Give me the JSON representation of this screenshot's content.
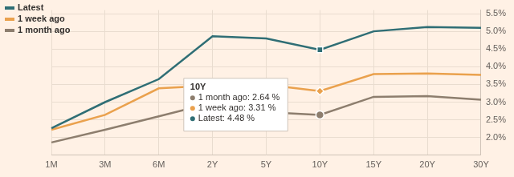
{
  "chart_data": {
    "type": "line",
    "categories": [
      "1M",
      "3M",
      "6M",
      "2Y",
      "5Y",
      "10Y",
      "15Y",
      "20Y",
      "30Y"
    ],
    "series": [
      {
        "name": "Latest",
        "color": "#2f6e75",
        "values": [
          2.26,
          3.0,
          3.65,
          4.86,
          4.8,
          4.48,
          5.0,
          5.12,
          5.1
        ]
      },
      {
        "name": "1 week ago",
        "color": "#eaa14d",
        "values": [
          2.22,
          2.64,
          3.39,
          3.47,
          3.49,
          3.31,
          3.79,
          3.81,
          3.77
        ]
      },
      {
        "name": "1 month ago",
        "color": "#8d7e6e",
        "values": [
          1.86,
          2.22,
          2.6,
          2.98,
          2.72,
          2.64,
          3.15,
          3.17,
          3.07
        ]
      }
    ],
    "ylim": [
      1.5,
      5.6
    ],
    "yticks": [
      {
        "value": 2,
        "label": "2.0%"
      },
      {
        "value": 2.5,
        "label": "2.5%"
      },
      {
        "value": 3,
        "label": "3.0%"
      },
      {
        "value": 3.5,
        "label": "3.5%"
      },
      {
        "value": 4,
        "label": "4.0%"
      },
      {
        "value": 4.5,
        "label": "4.5%"
      },
      {
        "value": 5,
        "label": "5.0%"
      },
      {
        "value": 5.5,
        "label": "5.5%"
      }
    ],
    "grid": true,
    "legend": "upper left",
    "annotations": [
      {
        "title": "10Y",
        "lines": [
          "1 month ago: 2.64 %",
          "1 week ago: 3.31 %",
          "Latest: 4.48 %"
        ]
      }
    ]
  }
}
